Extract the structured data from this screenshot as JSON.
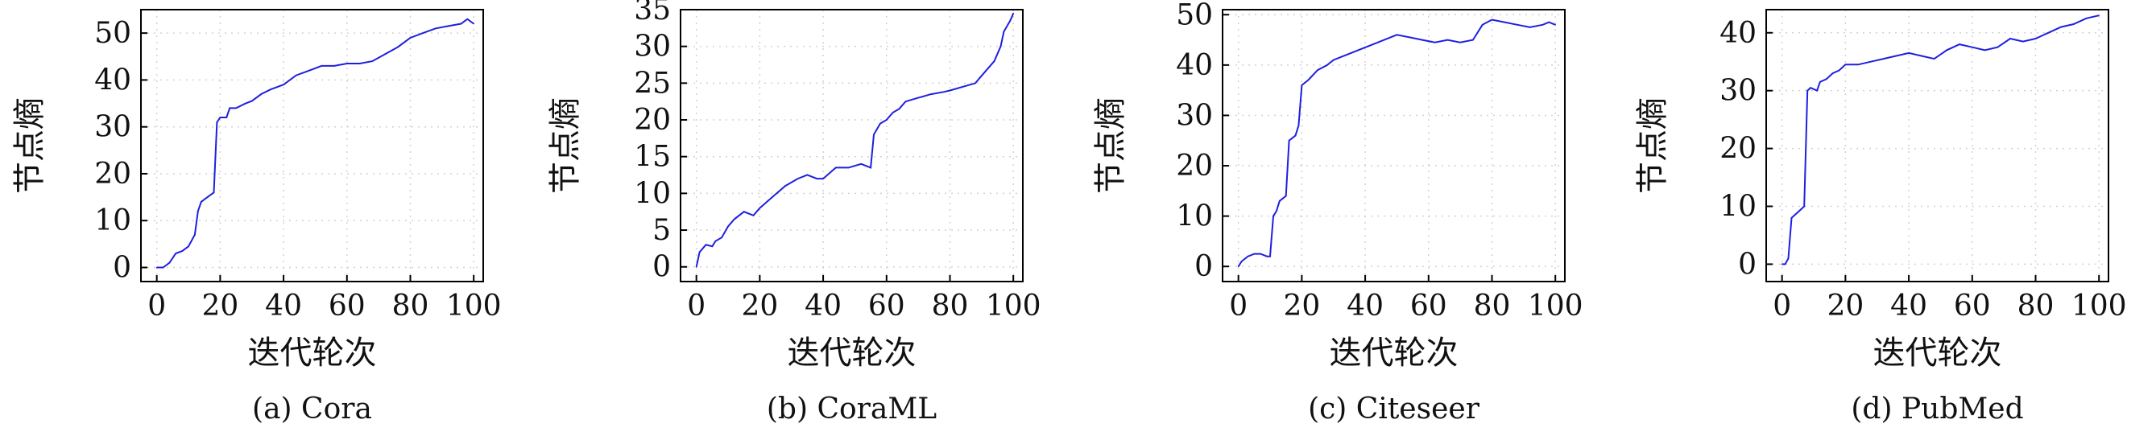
{
  "chart_data": [
    {
      "type": "line",
      "caption": "(a) Cora",
      "xlabel": "迭代轮次",
      "ylabel": "节点熵",
      "xlim": [
        -5,
        103
      ],
      "ylim": [
        -3,
        55
      ],
      "xticks": [
        0,
        20,
        40,
        60,
        80,
        100
      ],
      "yticks": [
        0,
        10,
        20,
        30,
        40,
        50
      ],
      "grid": true,
      "series": [
        {
          "color": "#1f1fe0",
          "x": [
            0,
            2,
            4,
            6,
            8,
            10,
            12,
            13,
            14,
            16,
            18,
            19,
            20,
            22,
            23,
            25,
            28,
            30,
            33,
            36,
            40,
            44,
            48,
            52,
            56,
            60,
            64,
            68,
            72,
            76,
            80,
            84,
            88,
            92,
            96,
            98,
            100
          ],
          "y": [
            0,
            0,
            1,
            3,
            3.5,
            4.5,
            7,
            12,
            14,
            15,
            16,
            31,
            32,
            32,
            34,
            34,
            35,
            35.5,
            37,
            38,
            39,
            41,
            42,
            43,
            43,
            43.5,
            43.5,
            44,
            45.5,
            47,
            49,
            50,
            51,
            51.5,
            52,
            53,
            52
          ]
        }
      ]
    },
    {
      "type": "line",
      "caption": "(b) CoraML",
      "xlabel": "迭代轮次",
      "ylabel": "节点熵",
      "xlim": [
        -5,
        103
      ],
      "ylim": [
        -2,
        35
      ],
      "xticks": [
        0,
        20,
        40,
        60,
        80,
        100
      ],
      "yticks": [
        0,
        5,
        10,
        15,
        20,
        25,
        30,
        35
      ],
      "grid": true,
      "series": [
        {
          "color": "#1f1fe0",
          "x": [
            0,
            1,
            3,
            5,
            6,
            8,
            10,
            12,
            15,
            18,
            20,
            24,
            28,
            32,
            35,
            38,
            40,
            44,
            48,
            52,
            55,
            56,
            58,
            60,
            62,
            64,
            66,
            70,
            74,
            78,
            80,
            84,
            88,
            90,
            94,
            96,
            97,
            99,
            100
          ],
          "y": [
            0,
            2,
            3,
            2.8,
            3.5,
            4,
            5.5,
            6.5,
            7.5,
            7,
            8,
            9.5,
            11,
            12,
            12.5,
            12,
            12,
            13.5,
            13.5,
            14,
            13.5,
            18,
            19.5,
            20,
            21,
            21.5,
            22.5,
            23,
            23.5,
            23.8,
            24,
            24.5,
            25,
            26,
            28,
            30,
            32,
            33.5,
            34.5
          ]
        }
      ]
    },
    {
      "type": "line",
      "caption": "(c) Citeseer",
      "xlabel": "迭代轮次",
      "ylabel": "节点熵",
      "xlim": [
        -5,
        103
      ],
      "ylim": [
        -3,
        51
      ],
      "xticks": [
        0,
        20,
        40,
        60,
        80,
        100
      ],
      "yticks": [
        0,
        10,
        20,
        30,
        40,
        50
      ],
      "grid": true,
      "series": [
        {
          "color": "#1f1fe0",
          "x": [
            0,
            1,
            3,
            5,
            7,
            9,
            10,
            11,
            12,
            13,
            14,
            15,
            16,
            17,
            18,
            19,
            20,
            22,
            25,
            28,
            30,
            34,
            38,
            42,
            46,
            50,
            54,
            58,
            62,
            66,
            70,
            74,
            77,
            80,
            84,
            88,
            92,
            96,
            98,
            100
          ],
          "y": [
            0,
            1,
            2,
            2.5,
            2.5,
            2,
            2,
            10,
            11,
            13,
            13.5,
            14,
            25,
            25.5,
            26,
            28,
            36,
            37,
            39,
            40,
            41,
            42,
            43,
            44,
            45,
            46,
            45.5,
            45,
            44.5,
            45,
            44.5,
            45,
            48,
            49,
            48.5,
            48,
            47.5,
            48,
            48.5,
            48
          ]
        }
      ]
    },
    {
      "type": "line",
      "caption": "(d) PubMed",
      "xlabel": "迭代轮次",
      "ylabel": "节点熵",
      "xlim": [
        -5,
        103
      ],
      "ylim": [
        -3,
        44
      ],
      "xticks": [
        0,
        20,
        40,
        60,
        80,
        100
      ],
      "yticks": [
        0,
        10,
        20,
        30,
        40
      ],
      "grid": true,
      "series": [
        {
          "color": "#1f1fe0",
          "x": [
            0,
            1,
            2,
            3,
            5,
            7,
            8,
            9,
            11,
            12,
            14,
            16,
            18,
            20,
            24,
            28,
            32,
            36,
            40,
            44,
            48,
            52,
            56,
            60,
            64,
            68,
            72,
            76,
            80,
            84,
            88,
            92,
            96,
            100
          ],
          "y": [
            0,
            0,
            1,
            8,
            9,
            10,
            30,
            30.5,
            30,
            31.5,
            32,
            33,
            33.5,
            34.5,
            34.5,
            35,
            35.5,
            36,
            36.5,
            36,
            35.5,
            37,
            38,
            37.5,
            37,
            37.5,
            39,
            38.5,
            39,
            40,
            41,
            41.5,
            42.5,
            43
          ]
        }
      ]
    }
  ]
}
